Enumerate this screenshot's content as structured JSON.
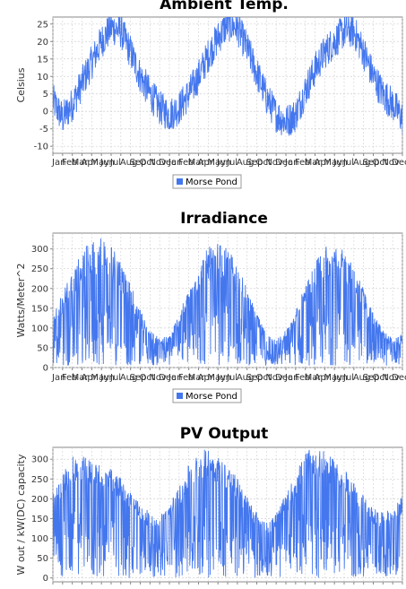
{
  "colors": {
    "series": "#4477ee",
    "plot_bg": "#ffffff",
    "grid": "#d0d0d0",
    "axis": "#888888"
  },
  "chart_data": [
    {
      "type": "line",
      "title": "Ambient Temp.",
      "ylabel": "Celsius",
      "xlabel": "",
      "ylim": [
        -12,
        27
      ],
      "yticks": [
        -10,
        -5,
        0,
        5,
        10,
        15,
        20,
        25
      ],
      "x_tick_labels": [
        "Jan",
        "Feb",
        "Mar",
        "Apr",
        "May",
        "Jun",
        "Jul",
        "Aug",
        "Sep",
        "Oct",
        "Nov",
        "Dec",
        "Jan",
        "Feb",
        "Mar",
        "Apr",
        "May",
        "Jun",
        "Jul",
        "Aug",
        "Sep",
        "Oct",
        "Nov",
        "Dec",
        "Jan",
        "Feb",
        "Mar",
        "Apr",
        "May",
        "Jun",
        "Jul",
        "Aug",
        "Sep",
        "Oct",
        "Nov",
        "Dec"
      ],
      "legend": {
        "position": "bottom",
        "entries": [
          "Morse Pond"
        ]
      },
      "grid": true,
      "series": [
        {
          "name": "Morse Pond",
          "x_months": [
            0,
            1,
            2,
            3,
            4,
            5,
            6,
            7,
            8,
            9,
            10,
            11,
            12,
            13,
            14,
            15,
            16,
            17,
            18,
            19,
            20,
            21,
            22,
            23,
            24,
            25,
            26,
            27,
            28,
            29,
            30,
            31,
            32,
            33,
            34,
            35,
            36
          ],
          "values": [
            3,
            -2,
            2,
            8,
            14,
            20,
            24,
            23,
            17,
            10,
            5,
            1,
            -1,
            1,
            5,
            10,
            16,
            21,
            25,
            24,
            18,
            11,
            4,
            -1,
            -3,
            -1,
            6,
            12,
            17,
            20,
            23,
            23,
            17,
            10,
            5,
            2,
            -2
          ]
        }
      ]
    },
    {
      "type": "line",
      "title": "Irradiance",
      "ylabel": "Watts/Meter^2",
      "xlabel": "",
      "ylim": [
        0,
        340
      ],
      "yticks": [
        0,
        50,
        100,
        150,
        200,
        250,
        300
      ],
      "x_tick_labels": [
        "Jan",
        "Feb",
        "Mar",
        "Apr",
        "May",
        "Jun",
        "Jul",
        "Aug",
        "Sep",
        "Oct",
        "Nov",
        "Dec",
        "Jan",
        "Feb",
        "Mar",
        "Apr",
        "May",
        "Jun",
        "Jul",
        "Aug",
        "Sep",
        "Oct",
        "Nov",
        "Dec",
        "Jan",
        "Feb",
        "Mar",
        "Apr",
        "May",
        "Jun",
        "Jul",
        "Aug",
        "Sep",
        "Oct",
        "Nov",
        "Dec"
      ],
      "legend": {
        "position": "bottom",
        "entries": [
          "Morse Pond"
        ]
      },
      "grid": true,
      "series": [
        {
          "name": "Morse Pond",
          "x_months": [
            0,
            1,
            2,
            3,
            4,
            5,
            6,
            7,
            8,
            9,
            10,
            11,
            12,
            13,
            14,
            15,
            16,
            17,
            18,
            19,
            20,
            21,
            22,
            23,
            24,
            25,
            26,
            27,
            28,
            29,
            30,
            31,
            32,
            33,
            34,
            35,
            36
          ],
          "values": [
            130,
            180,
            240,
            280,
            310,
            320,
            300,
            260,
            200,
            140,
            90,
            70,
            80,
            130,
            190,
            250,
            290,
            300,
            290,
            250,
            190,
            130,
            80,
            70,
            90,
            140,
            200,
            250,
            300,
            300,
            280,
            250,
            190,
            130,
            90,
            70,
            80
          ]
        }
      ]
    },
    {
      "type": "line",
      "title": "PV Output",
      "ylabel": "W out / kW(DC) capacity",
      "xlabel": "",
      "ylim": [
        -10,
        330
      ],
      "yticks": [
        0,
        50,
        100,
        150,
        200,
        250,
        300
      ],
      "x_tick_labels": [],
      "legend": {
        "position": "none",
        "entries": []
      },
      "grid": true,
      "series": [
        {
          "name": "Morse Pond",
          "x_months": [
            0,
            1,
            2,
            3,
            4,
            5,
            6,
            7,
            8,
            9,
            10,
            11,
            12,
            13,
            14,
            15,
            16,
            17,
            18,
            19,
            20,
            21,
            22,
            23,
            24,
            25,
            26,
            27,
            28,
            29,
            30,
            31,
            32,
            33,
            34,
            35,
            36
          ],
          "values": [
            190,
            240,
            280,
            280,
            270,
            260,
            250,
            230,
            200,
            170,
            150,
            150,
            170,
            210,
            260,
            290,
            300,
            280,
            260,
            230,
            190,
            150,
            130,
            150,
            190,
            240,
            290,
            300,
            290,
            270,
            250,
            220,
            190,
            160,
            150,
            160,
            190
          ]
        }
      ]
    }
  ]
}
